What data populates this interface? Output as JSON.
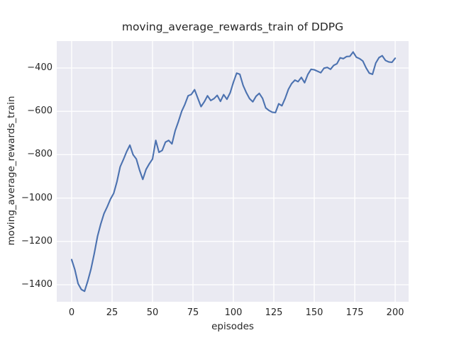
{
  "colors": {
    "figure_bg": "#ffffff",
    "axes_bg": "#eaeaf2",
    "grid": "#ffffff",
    "text": "#262626",
    "line": "#4c72b0"
  },
  "chart_data": {
    "type": "line",
    "title": "moving_average_rewards_train of DDPG",
    "xlabel": "episodes",
    "ylabel": "moving_average_rewards_train",
    "grid": true,
    "legend": false,
    "x_ticks": [
      0,
      25,
      50,
      75,
      100,
      125,
      150,
      175,
      200
    ],
    "x_tick_labels": [
      "0",
      "25",
      "50",
      "75",
      "100",
      "125",
      "150",
      "175",
      "200"
    ],
    "y_ticks": [
      -400,
      -600,
      -800,
      -1000,
      -1200,
      -1400
    ],
    "y_tick_labels": [
      "−400",
      "−600",
      "−800",
      "−1000",
      "−1200",
      "−1400"
    ],
    "xlim": [
      -9.2,
      208.3
    ],
    "ylim": [
      -1478.4,
      -275.8
    ],
    "line_color": "#4c72b0",
    "series": [
      {
        "name": "moving_average_rewards_train",
        "x": [
          0,
          2,
          4,
          6,
          8,
          10,
          12,
          14,
          16,
          18,
          20,
          22,
          24,
          26,
          28,
          30,
          32,
          34,
          36,
          38,
          40,
          42,
          44,
          46,
          48,
          50,
          52,
          54,
          56,
          58,
          60,
          62,
          64,
          66,
          68,
          70,
          72,
          74,
          76,
          78,
          80,
          82,
          84,
          86,
          88,
          90,
          92,
          94,
          96,
          98,
          100,
          102,
          104,
          106,
          108,
          110,
          112,
          114,
          116,
          118,
          120,
          122,
          124,
          126,
          128,
          130,
          132,
          134,
          136,
          138,
          140,
          142,
          144,
          146,
          148,
          150,
          152,
          154,
          156,
          158,
          160,
          162,
          164,
          166,
          168,
          170,
          172,
          174,
          176,
          178,
          180,
          182,
          184,
          186,
          188,
          190,
          192,
          194,
          196,
          198,
          200
        ],
        "y": [
          -1284,
          -1330,
          -1395,
          -1422,
          -1430,
          -1382,
          -1327,
          -1256,
          -1176,
          -1120,
          -1072,
          -1040,
          -1005,
          -978,
          -925,
          -856,
          -822,
          -786,
          -756,
          -800,
          -820,
          -872,
          -914,
          -868,
          -842,
          -820,
          -734,
          -789,
          -780,
          -742,
          -734,
          -750,
          -690,
          -647,
          -600,
          -568,
          -528,
          -522,
          -500,
          -540,
          -578,
          -556,
          -528,
          -550,
          -541,
          -526,
          -554,
          -523,
          -544,
          -514,
          -466,
          -424,
          -429,
          -480,
          -514,
          -541,
          -556,
          -530,
          -517,
          -540,
          -584,
          -596,
          -604,
          -606,
          -565,
          -574,
          -540,
          -498,
          -472,
          -456,
          -463,
          -443,
          -468,
          -430,
          -406,
          -408,
          -415,
          -422,
          -401,
          -397,
          -406,
          -388,
          -380,
          -353,
          -357,
          -347,
          -346,
          -326,
          -350,
          -357,
          -368,
          -399,
          -424,
          -429,
          -377,
          -352,
          -343,
          -365,
          -372,
          -374,
          -355
        ]
      }
    ]
  }
}
